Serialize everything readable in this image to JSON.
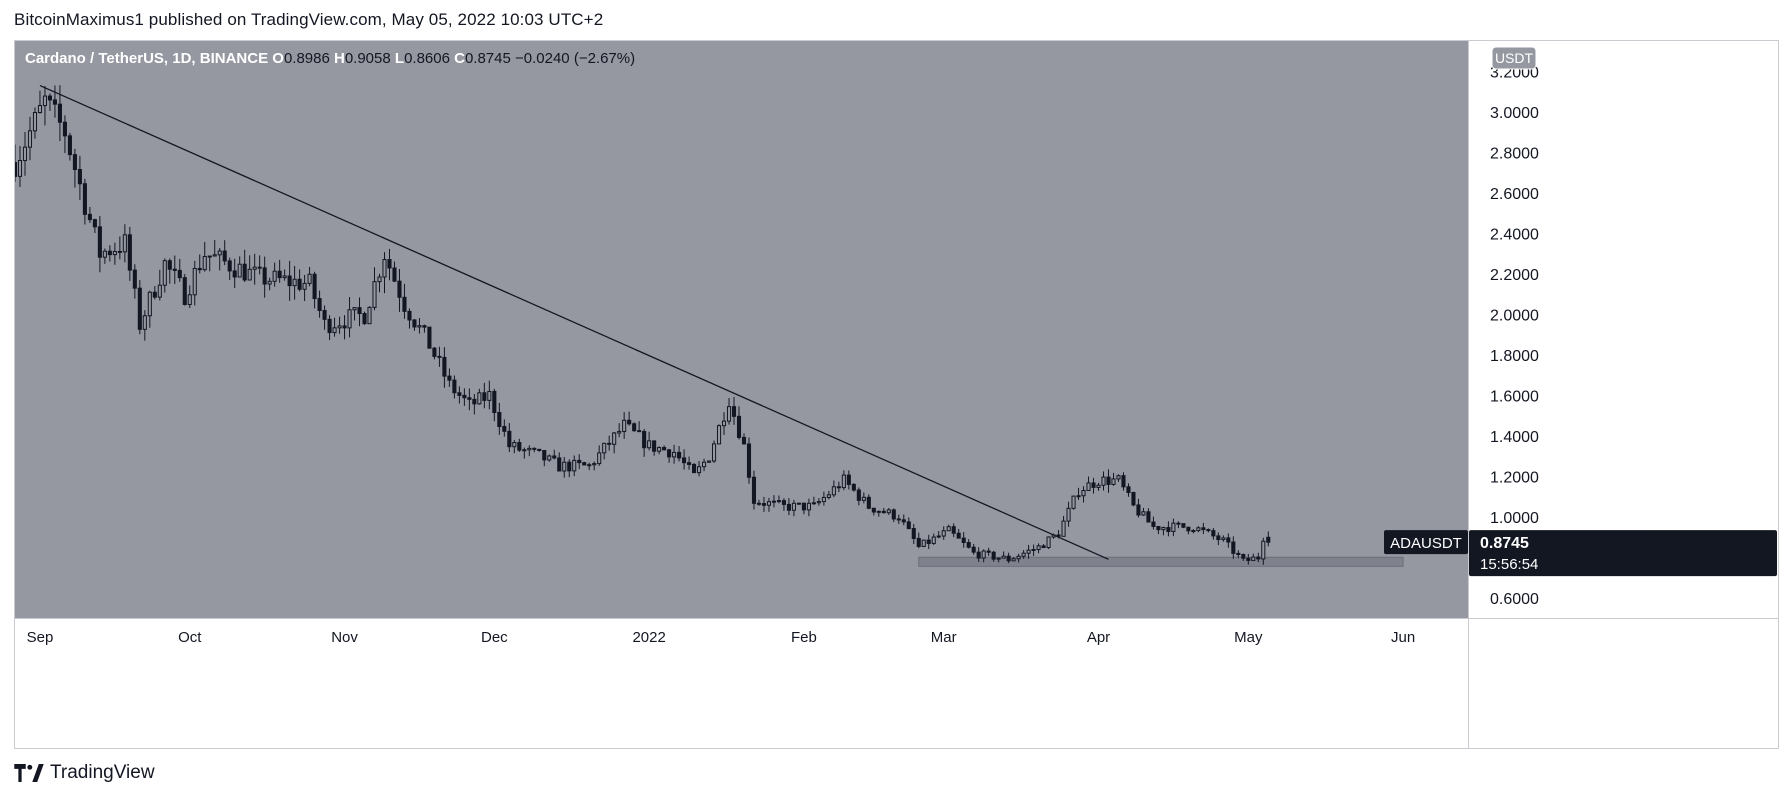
{
  "header": {
    "published_text": "BitcoinMaximus1 published on TradingView.com, May 05, 2022 10:03 UTC+2"
  },
  "footer": {
    "brand": "TradingView",
    "logo_icon": "tradingview-logo-icon"
  },
  "colors": {
    "plot_background": "#9598a1",
    "candle": "#131722",
    "axis_text": "#131722",
    "price_label_bg": "#131722",
    "price_label_text": "#ffffff",
    "support_zone": "#787b86"
  },
  "chart_data": {
    "type": "candlestick",
    "symbol_line": {
      "title": "Cardano / TetherUS, 1D, BINANCE",
      "o_label": "O",
      "o_value": "0.8986",
      "h_label": "H",
      "h_value": "0.9058",
      "l_label": "L",
      "l_value": "0.8606",
      "c_label": "C",
      "c_value": "0.8745",
      "change": "−0.0240 (−2.67%)"
    },
    "currency_badge": "USDT",
    "ylim": [
      0.5,
      3.35
    ],
    "y_ticks": [
      {
        "value": 3.2,
        "label": "3.2000"
      },
      {
        "value": 3.0,
        "label": "3.0000"
      },
      {
        "value": 2.8,
        "label": "2.8000"
      },
      {
        "value": 2.6,
        "label": "2.6000"
      },
      {
        "value": 2.4,
        "label": "2.4000"
      },
      {
        "value": 2.2,
        "label": "2.2000"
      },
      {
        "value": 2.0,
        "label": "2.0000"
      },
      {
        "value": 1.8,
        "label": "1.8000"
      },
      {
        "value": 1.6,
        "label": "1.6000"
      },
      {
        "value": 1.4,
        "label": "1.4000"
      },
      {
        "value": 1.2,
        "label": "1.2000"
      },
      {
        "value": 1.0,
        "label": "1.0000"
      },
      {
        "value": 0.6,
        "label": "0.6000"
      }
    ],
    "x_range": [
      "2021-08-27",
      "2022-06-14"
    ],
    "x_ticks": [
      {
        "date": "2021-09-01",
        "label": "Sep"
      },
      {
        "date": "2021-10-01",
        "label": "Oct"
      },
      {
        "date": "2021-11-01",
        "label": "Nov"
      },
      {
        "date": "2021-12-01",
        "label": "Dec"
      },
      {
        "date": "2022-01-01",
        "label": "2022"
      },
      {
        "date": "2022-02-01",
        "label": "Feb"
      },
      {
        "date": "2022-03-01",
        "label": "Mar"
      },
      {
        "date": "2022-04-01",
        "label": "Apr"
      },
      {
        "date": "2022-05-01",
        "label": "May"
      },
      {
        "date": "2022-06-01",
        "label": "Jun"
      }
    ],
    "price_anchors": [
      [
        "2021-08-27",
        2.75
      ],
      [
        "2021-09-02",
        3.05
      ],
      [
        "2021-09-06",
        2.9
      ],
      [
        "2021-09-10",
        2.55
      ],
      [
        "2021-09-13",
        2.3
      ],
      [
        "2021-09-18",
        2.35
      ],
      [
        "2021-09-21",
        1.95
      ],
      [
        "2021-09-26",
        2.25
      ],
      [
        "2021-09-30",
        2.1
      ],
      [
        "2021-10-04",
        2.3
      ],
      [
        "2021-10-15",
        2.18
      ],
      [
        "2021-10-25",
        2.15
      ],
      [
        "2021-10-28",
        1.95
      ],
      [
        "2021-11-05",
        2.0
      ],
      [
        "2021-11-09",
        2.3
      ],
      [
        "2021-11-13",
        2.05
      ],
      [
        "2021-11-18",
        1.85
      ],
      [
        "2021-11-22",
        1.65
      ],
      [
        "2021-11-26",
        1.55
      ],
      [
        "2021-11-30",
        1.6
      ],
      [
        "2021-12-04",
        1.35
      ],
      [
        "2021-12-10",
        1.3
      ],
      [
        "2021-12-14",
        1.25
      ],
      [
        "2021-12-20",
        1.25
      ],
      [
        "2021-12-27",
        1.45
      ],
      [
        "2022-01-01",
        1.35
      ],
      [
        "2022-01-06",
        1.32
      ],
      [
        "2022-01-10",
        1.2
      ],
      [
        "2022-01-13",
        1.3
      ],
      [
        "2022-01-17",
        1.58
      ],
      [
        "2022-01-20",
        1.35
      ],
      [
        "2022-01-22",
        1.08
      ],
      [
        "2022-01-28",
        1.05
      ],
      [
        "2022-02-03",
        1.05
      ],
      [
        "2022-02-09",
        1.18
      ],
      [
        "2022-02-14",
        1.05
      ],
      [
        "2022-02-20",
        1.0
      ],
      [
        "2022-02-24",
        0.85
      ],
      [
        "2022-03-02",
        0.93
      ],
      [
        "2022-03-07",
        0.82
      ],
      [
        "2022-03-14",
        0.79
      ],
      [
        "2022-03-20",
        0.85
      ],
      [
        "2022-03-24",
        0.92
      ],
      [
        "2022-03-28",
        1.13
      ],
      [
        "2022-04-01",
        1.18
      ],
      [
        "2022-04-05",
        1.18
      ],
      [
        "2022-04-08",
        1.05
      ],
      [
        "2022-04-12",
        0.95
      ],
      [
        "2022-04-20",
        0.95
      ],
      [
        "2022-04-26",
        0.88
      ],
      [
        "2022-04-30",
        0.78
      ],
      [
        "2022-05-03",
        0.8
      ],
      [
        "2022-05-04",
        0.9
      ],
      [
        "2022-05-05",
        0.8745
      ]
    ],
    "trendline": {
      "from": [
        "2021-09-01",
        3.13
      ],
      "to": [
        "2022-04-03",
        0.79
      ]
    },
    "support_zone": {
      "from": "2022-02-24",
      "to": "2022-06-01",
      "low": 0.755,
      "high": 0.8
    },
    "last_price": {
      "symbol": "ADAUSDT",
      "value": 0.8745,
      "price_label": "0.8745",
      "countdown": "15:56:54"
    }
  }
}
